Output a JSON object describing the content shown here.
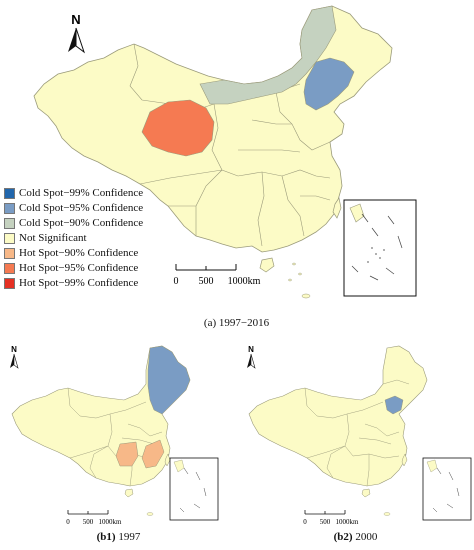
{
  "panel_a": {
    "caption_id": "(a)",
    "caption_years": "1997−2016",
    "north": "N",
    "scale_labels": [
      "0",
      "500",
      "1000km"
    ]
  },
  "panel_b1": {
    "caption_id": "(b1)",
    "caption_years": "1997",
    "north": "N",
    "scale_labels": [
      "0",
      "500",
      "1000km"
    ]
  },
  "panel_b2": {
    "caption_id": "(b2)",
    "caption_years": "2000",
    "north": "N",
    "scale_labels": [
      "0",
      "500",
      "1000km"
    ]
  },
  "legend": [
    {
      "label": "Cold Spot−99% Confidence",
      "color": "#2166ac"
    },
    {
      "label": "Cold Spot−95% Confidence",
      "color": "#7a9cc4"
    },
    {
      "label": "Cold Spot−90% Confidence",
      "color": "#c5d2c0"
    },
    {
      "label": "Not Significant",
      "color": "#fcfbc6"
    },
    {
      "label": "Hot Spot−90% Confidence",
      "color": "#f7b888"
    },
    {
      "label": "Hot Spot−95% Confidence",
      "color": "#f57a52"
    },
    {
      "label": "Hot Spot−99% Confidence",
      "color": "#e53023"
    }
  ],
  "colors": {
    "base": "#fcfbc6",
    "cold99": "#2166ac",
    "cold95": "#7a9cc4",
    "cold90": "#c5d2c0",
    "hot90": "#f7b888",
    "hot95": "#f57a52",
    "hot99": "#e53023",
    "border": "#9a9a7a"
  }
}
